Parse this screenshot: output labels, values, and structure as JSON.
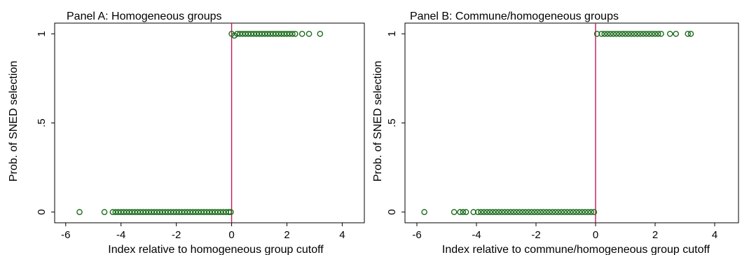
{
  "colors": {
    "background": "#ffffff",
    "frame": "#000000",
    "marker": "#1a6b1a",
    "cutoff_line": "#c2185b"
  },
  "chart_data": [
    {
      "type": "scatter",
      "title": "Panel A: Homogeneous groups",
      "xlabel": "Index relative to homogeneous group cutoff",
      "ylabel": "Prob. of SNED selection",
      "xlim": [
        -6.4,
        4.8
      ],
      "ylim": [
        -0.06,
        1.06
      ],
      "x_ticks": [
        -6,
        -4,
        -2,
        0,
        2,
        4
      ],
      "x_tick_labels": [
        "-6",
        "-4",
        "-2",
        "0",
        "2",
        "4"
      ],
      "y_ticks": [
        0,
        0.5,
        1
      ],
      "y_tick_labels": [
        "0",
        ".5",
        "1"
      ],
      "grid": false,
      "marker": "hollow-circle",
      "reference_line_x": 0,
      "series": [
        {
          "points": [
            [
              -5.5,
              0
            ],
            [
              -4.6,
              0
            ],
            [
              -4.3,
              0
            ],
            [
              -4.2,
              0
            ],
            [
              -4.1,
              0
            ],
            [
              -4.0,
              0
            ],
            [
              -3.9,
              0
            ],
            [
              -3.8,
              0
            ],
            [
              -3.7,
              0
            ],
            [
              -3.6,
              0
            ],
            [
              -3.5,
              0
            ],
            [
              -3.4,
              0
            ],
            [
              -3.3,
              0
            ],
            [
              -3.2,
              0
            ],
            [
              -3.1,
              0
            ],
            [
              -3.0,
              0
            ],
            [
              -2.9,
              0
            ],
            [
              -2.8,
              0
            ],
            [
              -2.7,
              0
            ],
            [
              -2.6,
              0
            ],
            [
              -2.5,
              0
            ],
            [
              -2.4,
              0
            ],
            [
              -2.3,
              0
            ],
            [
              -2.2,
              0
            ],
            [
              -2.1,
              0
            ],
            [
              -2.0,
              0
            ],
            [
              -1.9,
              0
            ],
            [
              -1.8,
              0
            ],
            [
              -1.7,
              0
            ],
            [
              -1.6,
              0
            ],
            [
              -1.5,
              0
            ],
            [
              -1.4,
              0
            ],
            [
              -1.3,
              0
            ],
            [
              -1.2,
              0
            ],
            [
              -1.1,
              0
            ],
            [
              -1.0,
              0
            ],
            [
              -0.9,
              0
            ],
            [
              -0.8,
              0
            ],
            [
              -0.7,
              0
            ],
            [
              -0.6,
              0
            ],
            [
              -0.5,
              0
            ],
            [
              -0.4,
              0
            ],
            [
              -0.3,
              0
            ],
            [
              -0.2,
              0
            ],
            [
              -0.1,
              0
            ],
            [
              -0.03,
              0
            ],
            [
              0.0,
              1
            ],
            [
              0.1,
              0.99
            ],
            [
              0.2,
              1
            ],
            [
              0.3,
              1
            ],
            [
              0.4,
              1
            ],
            [
              0.5,
              1
            ],
            [
              0.6,
              1
            ],
            [
              0.7,
              1
            ],
            [
              0.8,
              1
            ],
            [
              0.9,
              1
            ],
            [
              1.0,
              1
            ],
            [
              1.1,
              1
            ],
            [
              1.2,
              1
            ],
            [
              1.3,
              1
            ],
            [
              1.4,
              1
            ],
            [
              1.5,
              1
            ],
            [
              1.6,
              1
            ],
            [
              1.7,
              1
            ],
            [
              1.8,
              1
            ],
            [
              1.9,
              1
            ],
            [
              2.0,
              1
            ],
            [
              2.1,
              1
            ],
            [
              2.2,
              1
            ],
            [
              2.3,
              1
            ],
            [
              2.55,
              1
            ],
            [
              2.8,
              1
            ],
            [
              3.2,
              1
            ]
          ]
        }
      ]
    },
    {
      "type": "scatter",
      "title": "Panel B: Commune/homogeneous groups",
      "xlabel": "Index relative to commune/homogeneous group cutoff",
      "ylabel": "Prob. of SNED selection",
      "xlim": [
        -6.4,
        4.8
      ],
      "ylim": [
        -0.06,
        1.06
      ],
      "x_ticks": [
        -6,
        -4,
        -2,
        0,
        2,
        4
      ],
      "x_tick_labels": [
        "-6",
        "-4",
        "-2",
        "0",
        "2",
        "4"
      ],
      "y_ticks": [
        0,
        0.5,
        1
      ],
      "y_tick_labels": [
        "0",
        ".5",
        "1"
      ],
      "grid": false,
      "marker": "hollow-circle",
      "reference_line_x": 0,
      "series": [
        {
          "points": [
            [
              -5.75,
              0
            ],
            [
              -4.75,
              0
            ],
            [
              -4.55,
              0
            ],
            [
              -4.45,
              0
            ],
            [
              -4.35,
              0
            ],
            [
              -4.1,
              0
            ],
            [
              -3.95,
              0
            ],
            [
              -3.85,
              0
            ],
            [
              -3.75,
              0
            ],
            [
              -3.65,
              0
            ],
            [
              -3.55,
              0
            ],
            [
              -3.45,
              0
            ],
            [
              -3.35,
              0
            ],
            [
              -3.25,
              0
            ],
            [
              -3.15,
              0
            ],
            [
              -3.05,
              0
            ],
            [
              -2.95,
              0
            ],
            [
              -2.85,
              0
            ],
            [
              -2.75,
              0
            ],
            [
              -2.65,
              0
            ],
            [
              -2.55,
              0
            ],
            [
              -2.45,
              0
            ],
            [
              -2.35,
              0
            ],
            [
              -2.25,
              0
            ],
            [
              -2.15,
              0
            ],
            [
              -2.05,
              0
            ],
            [
              -1.95,
              0
            ],
            [
              -1.85,
              0
            ],
            [
              -1.75,
              0
            ],
            [
              -1.65,
              0
            ],
            [
              -1.55,
              0
            ],
            [
              -1.45,
              0
            ],
            [
              -1.35,
              0
            ],
            [
              -1.25,
              0
            ],
            [
              -1.15,
              0
            ],
            [
              -1.05,
              0
            ],
            [
              -0.95,
              0
            ],
            [
              -0.85,
              0
            ],
            [
              -0.75,
              0
            ],
            [
              -0.65,
              0
            ],
            [
              -0.55,
              0
            ],
            [
              -0.45,
              0
            ],
            [
              -0.35,
              0
            ],
            [
              -0.25,
              0
            ],
            [
              -0.15,
              0
            ],
            [
              -0.05,
              0
            ],
            [
              0.05,
              1
            ],
            [
              0.2,
              1
            ],
            [
              0.3,
              1
            ],
            [
              0.4,
              1
            ],
            [
              0.5,
              1
            ],
            [
              0.6,
              1
            ],
            [
              0.7,
              1
            ],
            [
              0.8,
              1
            ],
            [
              0.9,
              1
            ],
            [
              1.0,
              1
            ],
            [
              1.1,
              1
            ],
            [
              1.2,
              1
            ],
            [
              1.3,
              1
            ],
            [
              1.4,
              1
            ],
            [
              1.5,
              1
            ],
            [
              1.6,
              1
            ],
            [
              1.7,
              1
            ],
            [
              1.8,
              1
            ],
            [
              1.9,
              1
            ],
            [
              2.0,
              1
            ],
            [
              2.1,
              1
            ],
            [
              2.2,
              1
            ],
            [
              2.5,
              1
            ],
            [
              2.7,
              1
            ],
            [
              3.1,
              1
            ],
            [
              3.2,
              1
            ]
          ]
        }
      ]
    }
  ]
}
